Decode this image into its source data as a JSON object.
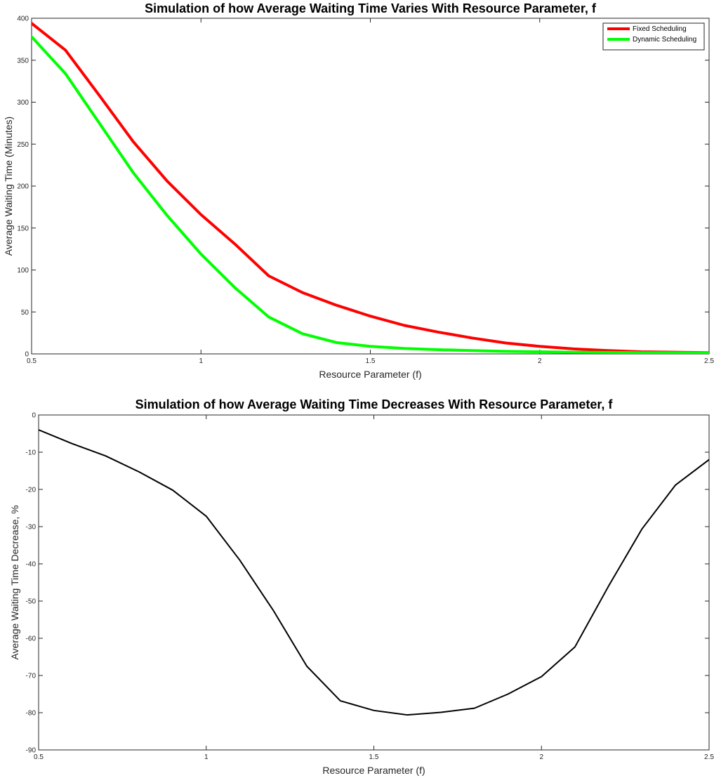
{
  "chart_data": [
    {
      "type": "line",
      "title": "Simulation of how Average Waiting Time Varies With Resource Parameter, f",
      "xlabel": "Resource Parameter (f)",
      "ylabel": "Average Waiting Time (Minutes)",
      "xlim": [
        0.5,
        2.5
      ],
      "ylim": [
        0,
        400
      ],
      "xticks": [
        0.5,
        1,
        1.5,
        2,
        2.5
      ],
      "xtick_labels": [
        "0.5",
        "1",
        "1.5",
        "2",
        "2.5"
      ],
      "yticks": [
        0,
        50,
        100,
        150,
        200,
        250,
        300,
        350,
        400
      ],
      "ytick_labels": [
        "0",
        "50",
        "100",
        "150",
        "200",
        "250",
        "300",
        "350",
        "400"
      ],
      "grid": false,
      "legend_position": "top-right",
      "x": [
        0.5,
        0.6,
        0.7,
        0.8,
        0.9,
        1.0,
        1.1,
        1.2,
        1.3,
        1.4,
        1.5,
        1.6,
        1.7,
        1.8,
        1.9,
        2.0,
        2.1,
        2.2,
        2.3,
        2.4,
        2.5
      ],
      "series": [
        {
          "name": "Fixed Scheduling",
          "color": "#ff0000",
          "values": [
            394,
            362,
            308,
            253,
            206,
            166,
            131,
            93,
            73,
            58,
            45,
            34,
            26,
            19,
            13,
            9,
            6,
            4,
            2.5,
            2,
            1.5
          ]
        },
        {
          "name": "Dynamic Scheduling",
          "color": "#00ff00",
          "values": [
            378,
            334,
            275,
            216,
            165,
            119,
            79,
            44,
            24,
            13.5,
            9,
            6.5,
            5,
            4,
            3,
            2.5,
            2,
            1.8,
            1.5,
            1.4,
            1.3
          ]
        }
      ]
    },
    {
      "type": "line",
      "title": "Simulation of how Average Waiting Time Decreases With Resource Parameter, f",
      "xlabel": "Resource Parameter (f)",
      "ylabel": "Average Waiting Time Decrease, %",
      "xlim": [
        0.5,
        2.5
      ],
      "ylim": [
        -90,
        0
      ],
      "xticks": [
        0.5,
        1,
        1.5,
        2,
        2.5
      ],
      "xtick_labels": [
        "0.5",
        "1",
        "1.5",
        "2",
        "2.5"
      ],
      "yticks": [
        -90,
        -80,
        -70,
        -60,
        -50,
        -40,
        -30,
        -20,
        -10,
        0
      ],
      "ytick_labels": [
        "-90",
        "-80",
        "-70",
        "-60",
        "-50",
        "-40",
        "-30",
        "-20",
        "-10",
        "0"
      ],
      "grid": false,
      "x": [
        0.5,
        0.6,
        0.7,
        0.8,
        0.9,
        1.0,
        1.1,
        1.2,
        1.3,
        1.4,
        1.5,
        1.6,
        1.7,
        1.8,
        1.9,
        2.0,
        2.1,
        2.2,
        2.3,
        2.4,
        2.5
      ],
      "series": [
        {
          "color": "#000000",
          "values": [
            -4,
            -7.7,
            -11,
            -15.3,
            -20.2,
            -27.2,
            -39,
            -52.5,
            -67.5,
            -76.8,
            -79.4,
            -80.6,
            -79.9,
            -78.8,
            -75,
            -70.3,
            -62.3,
            -46,
            -30.6,
            -18.8,
            -12
          ]
        }
      ]
    }
  ]
}
